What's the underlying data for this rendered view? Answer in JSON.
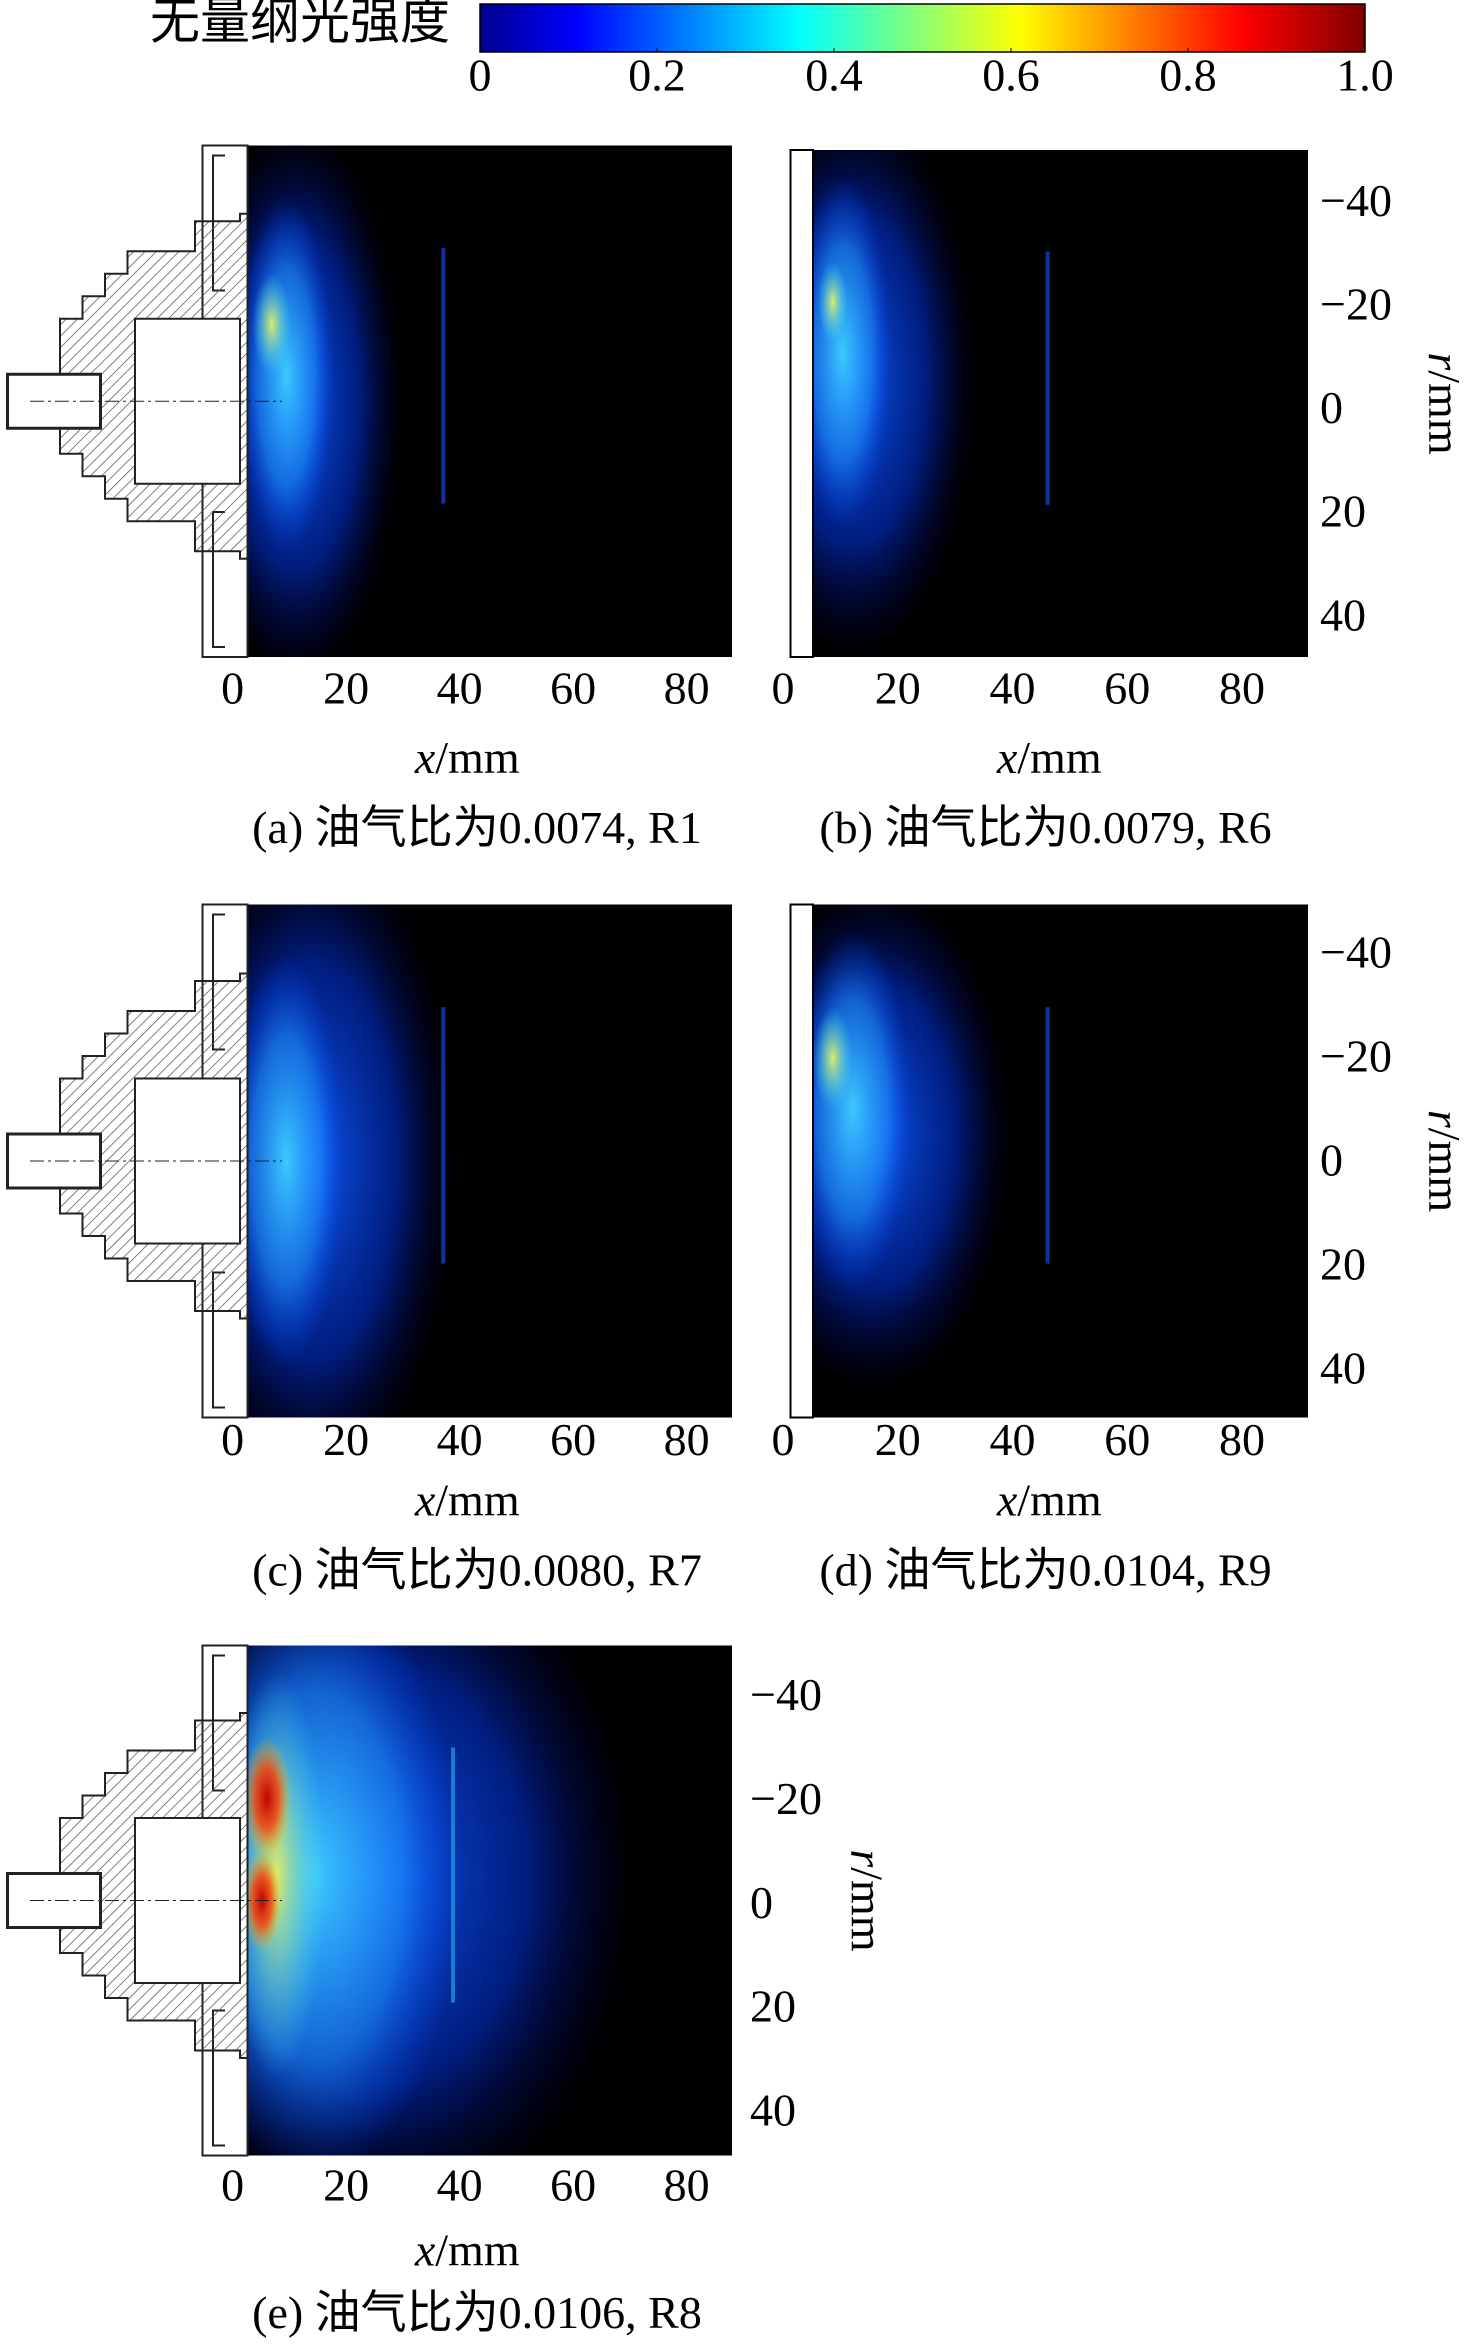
{
  "colorbar": {
    "title": "无量纲光强度",
    "range": [
      0,
      1
    ],
    "ticks": [
      0,
      0.2,
      0.4,
      0.6,
      0.8,
      {
        "value": 1,
        "label": "1.0"
      }
    ]
  },
  "panels": [
    {
      "caption": "(a) 油气比为0.0074, R1",
      "xlabel": {
        "symbol": "x",
        "unit": "/mm"
      },
      "xlim": [
        -5.3,
        88
      ],
      "xticks": [
        0,
        20,
        40,
        60,
        80
      ]
    },
    {
      "caption": "(b) 油气比为0.0079, R6",
      "xlabel": {
        "symbol": "x",
        "unit": "/mm"
      },
      "xlim": [
        1.3,
        91.5
      ],
      "xticks": [
        0,
        20,
        40,
        60,
        80
      ],
      "ylabel": {
        "symbol": "r",
        "unit": "/mm"
      },
      "rlim": [
        -50.7,
        47.2
      ],
      "rticks": [
        {
          "value": -40,
          "label": "−40"
        },
        {
          "value": -20,
          "label": "−20"
        },
        0,
        20,
        40
      ]
    },
    {
      "caption": "(c) 油气比为0.0080, R7",
      "xlabel": {
        "symbol": "x",
        "unit": "/mm"
      },
      "xlim": [
        -5.3,
        88
      ],
      "xticks": [
        0,
        20,
        40,
        60,
        80
      ]
    },
    {
      "caption": "(d) 油气比为0.0104, R9",
      "xlabel": {
        "symbol": "x",
        "unit": "/mm"
      },
      "xlim": [
        1.3,
        91.5
      ],
      "xticks": [
        0,
        20,
        40,
        60,
        80
      ],
      "ylabel": {
        "symbol": "r",
        "unit": "/mm"
      },
      "rlim": [
        -50.1,
        48.6
      ],
      "rticks": [
        {
          "value": -40,
          "label": "−40"
        },
        {
          "value": -20,
          "label": "−20"
        },
        0,
        20,
        40
      ]
    },
    {
      "caption": "(e) 油气比为0.0106, R8",
      "xlabel": {
        "symbol": "x",
        "unit": "/mm"
      },
      "xlim": [
        -5.3,
        88
      ],
      "xticks": [
        0,
        20,
        40,
        60,
        80
      ],
      "ylabel": {
        "symbol": "r",
        "unit": "/mm"
      },
      "rlim": [
        -50.4,
        47.8
      ],
      "rticks": [
        {
          "value": -40,
          "label": "−40"
        },
        {
          "value": -20,
          "label": "−20"
        },
        0,
        20,
        40
      ]
    }
  ]
}
